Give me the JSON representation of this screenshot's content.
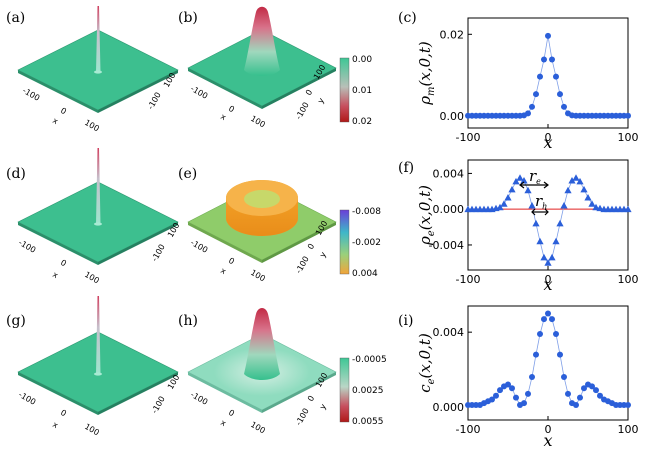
{
  "figure": {
    "panel_labels": {
      "a": "(a)",
      "b": "(b)",
      "c": "(c)",
      "d": "(d)",
      "e": "(e)",
      "f": "(f)",
      "g": "(g)",
      "h": "(h)",
      "i": "(i)"
    },
    "surface_axis_ticks": {
      "neg": "-100",
      "zero": "0",
      "pos": "100",
      "x": "x",
      "y": "y"
    },
    "colorbars": {
      "b": {
        "ticks": [
          "0.00",
          "0.01",
          "0.02"
        ],
        "colors": [
          "#3ec795",
          "#b8c0b8",
          "#c7505f",
          "#b01818"
        ]
      },
      "e": {
        "ticks": [
          "-0.008",
          "-0.002",
          "0.004"
        ],
        "colors": [
          "#6a3fd8",
          "#3fb7c8",
          "#9bd07a",
          "#f2a43a"
        ]
      },
      "h": {
        "ticks": [
          "-0.0005",
          "0.0025",
          "0.0055"
        ],
        "colors": [
          "#3ec795",
          "#b9d6c6",
          "#c7505f",
          "#b01818"
        ]
      }
    },
    "annotations": {
      "r_e": "r",
      "r_e_sub": "e",
      "r_h": "r",
      "r_h_sub": "h"
    }
  },
  "chart_data": [
    {
      "panel": "c",
      "type": "scatter",
      "ylabel": "ρ_m(x,0,t)",
      "ylabel_main": "ρ",
      "ylabel_sub": "m",
      "ylabel_rest": "(x,0,t)",
      "xlabel": "x",
      "xlim": [
        -100,
        100
      ],
      "ylim": [
        -0.003,
        0.024
      ],
      "xticks": [
        "-100",
        "0",
        "100"
      ],
      "xtick_values": [
        -100,
        0,
        100
      ],
      "yticks": [
        "0.00",
        "0.02"
      ],
      "ytick_values": [
        0,
        0.02
      ],
      "marker": "circle",
      "color": "#2b5fd9",
      "x": [
        -100,
        -95,
        -90,
        -85,
        -80,
        -75,
        -70,
        -65,
        -60,
        -55,
        -50,
        -45,
        -40,
        -35,
        -30,
        -25,
        -20,
        -15,
        -10,
        -5,
        0,
        5,
        10,
        15,
        20,
        25,
        30,
        35,
        40,
        45,
        50,
        55,
        60,
        65,
        70,
        75,
        80,
        85,
        90,
        95,
        100
      ],
      "y": [
        0,
        0,
        0,
        0,
        0,
        0,
        0,
        0,
        0,
        0,
        0,
        0,
        0,
        0,
        0.0001,
        0.0006,
        0.0022,
        0.0053,
        0.0096,
        0.0138,
        0.0196,
        0.0138,
        0.0096,
        0.0053,
        0.0022,
        0.0006,
        0.0001,
        0,
        0,
        0,
        0,
        0,
        0,
        0,
        0,
        0,
        0,
        0,
        0,
        0,
        0
      ]
    },
    {
      "panel": "f",
      "type": "scatter",
      "ylabel": "ρ_e(x,0,t)",
      "ylabel_main": "ρ",
      "ylabel_sub": "e",
      "ylabel_rest": "(x,0,t)",
      "xlabel": "x",
      "xlim": [
        -100,
        100
      ],
      "ylim": [
        -0.0068,
        0.0055
      ],
      "xticks": [
        "-100",
        "0",
        "100"
      ],
      "xtick_values": [
        -100,
        0,
        100
      ],
      "yticks": [
        "0.004",
        "0.000",
        "-0.004"
      ],
      "ytick_values": [
        0.004,
        0,
        -0.004
      ],
      "marker": "triangle",
      "color": "#2b5fd9",
      "zero_line_color": "#e02020",
      "x": [
        -100,
        -95,
        -90,
        -85,
        -80,
        -75,
        -70,
        -65,
        -60,
        -55,
        -50,
        -45,
        -40,
        -35,
        -30,
        -25,
        -20,
        -15,
        -10,
        -5,
        0,
        5,
        10,
        15,
        20,
        25,
        30,
        35,
        40,
        45,
        50,
        55,
        60,
        65,
        70,
        75,
        80,
        85,
        90,
        95,
        100
      ],
      "y": [
        0,
        0,
        0,
        0,
        0,
        0,
        0,
        0.0001,
        0.0002,
        0.0006,
        0.0013,
        0.0022,
        0.0031,
        0.0035,
        0.0032,
        0.0021,
        0.0004,
        -0.0016,
        -0.0036,
        -0.0054,
        -0.006,
        -0.0054,
        -0.0036,
        -0.0016,
        0.0004,
        0.0021,
        0.0032,
        0.0035,
        0.0031,
        0.0022,
        0.0013,
        0.0006,
        0.0002,
        0.0001,
        0,
        0,
        0,
        0,
        0,
        0,
        0
      ]
    },
    {
      "panel": "i",
      "type": "scatter",
      "ylabel": "c_e(x,0,t)",
      "ylabel_main": "c",
      "ylabel_sub": "e",
      "ylabel_rest": "(x,0,t)",
      "xlabel": "x",
      "xlim": [
        -100,
        100
      ],
      "ylim": [
        -0.0007,
        0.0054
      ],
      "xticks": [
        "-100",
        "0",
        "100"
      ],
      "xtick_values": [
        -100,
        0,
        100
      ],
      "yticks": [
        "0.004",
        "0.000"
      ],
      "ytick_values": [
        0.004,
        0
      ],
      "marker": "circle",
      "color": "#2b5fd9",
      "x": [
        -100,
        -95,
        -90,
        -85,
        -80,
        -75,
        -70,
        -65,
        -60,
        -55,
        -50,
        -45,
        -40,
        -35,
        -30,
        -25,
        -20,
        -15,
        -10,
        -5,
        0,
        5,
        10,
        15,
        20,
        25,
        30,
        35,
        40,
        45,
        50,
        55,
        60,
        65,
        70,
        75,
        80,
        85,
        90,
        95,
        100
      ],
      "y": [
        0.0001,
        0.0001,
        0.0001,
        0.0001,
        0.0002,
        0.0003,
        0.0004,
        0.0006,
        0.0009,
        0.0011,
        0.0012,
        0.001,
        0.0005,
        0.0001,
        0.0002,
        0.0007,
        0.0016,
        0.0028,
        0.0039,
        0.0047,
        0.005,
        0.0047,
        0.0039,
        0.0028,
        0.0016,
        0.0007,
        0.0002,
        0.0001,
        0.0005,
        0.001,
        0.0012,
        0.0011,
        0.0009,
        0.0006,
        0.0004,
        0.0003,
        0.0002,
        0.0001,
        0.0001,
        0.0001,
        0.0001
      ]
    }
  ]
}
